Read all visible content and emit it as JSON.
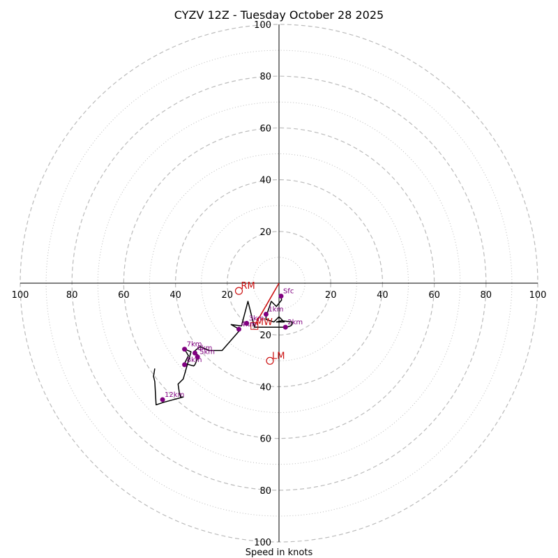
{
  "chart_data": {
    "type": "hodograph",
    "title": "CYZV 12Z - Tuesday October 28 2025",
    "xlabel": "Speed in knots",
    "range": [
      -100,
      100
    ],
    "dashed_rings": [
      20,
      40,
      60,
      80,
      100
    ],
    "dotted_rings": [
      10,
      30,
      50,
      70,
      90
    ],
    "tick_labels": {
      "left": [
        "100",
        "80",
        "60",
        "40",
        "20"
      ],
      "right": [
        "20",
        "40",
        "60",
        "80",
        "100"
      ],
      "top": [
        "20",
        "40",
        "60",
        "80",
        "100"
      ],
      "bottom": [
        "20",
        "40",
        "60",
        "80",
        "100"
      ]
    },
    "trace": [
      [
        0.8,
        -5
      ],
      [
        1,
        -6.5
      ],
      [
        -1,
        -9
      ],
      [
        -3,
        -7
      ],
      [
        -5,
        -13
      ],
      [
        -5,
        -14
      ],
      [
        -2,
        -15
      ],
      [
        0,
        -13
      ],
      [
        2,
        -15
      ],
      [
        -1,
        -15
      ],
      [
        1,
        -14.5
      ],
      [
        5,
        -15
      ],
      [
        5,
        -16
      ],
      [
        4.5,
        -16.5
      ],
      [
        3,
        -17
      ],
      [
        0,
        -17
      ],
      [
        -5,
        -17
      ],
      [
        -9.5,
        -17
      ],
      [
        -12,
        -7
      ],
      [
        -14.5,
        -16.5
      ],
      [
        -18.5,
        -16
      ],
      [
        -15,
        -18
      ],
      [
        -22,
        -26
      ],
      [
        -27,
        -26
      ],
      [
        -30.5,
        -24.5
      ],
      [
        -33,
        -26.5
      ],
      [
        -31,
        -28
      ],
      [
        -32.5,
        -31.5
      ],
      [
        -33,
        -32
      ],
      [
        -36.5,
        -31
      ],
      [
        -36,
        -30
      ],
      [
        -35,
        -28
      ],
      [
        -36.5,
        -25.5
      ],
      [
        -34,
        -26.5
      ],
      [
        -37,
        -37
      ],
      [
        -38,
        -38
      ],
      [
        -39,
        -39
      ],
      [
        -38.5,
        -42.5
      ],
      [
        -38,
        -44
      ],
      [
        -37,
        -44
      ],
      [
        -44.5,
        -46
      ],
      [
        -47.5,
        -47
      ],
      [
        -48,
        -38
      ],
      [
        -48.5,
        -36
      ],
      [
        -48,
        -33
      ]
    ],
    "height_markers": [
      {
        "label": "Sfc",
        "x": 0.8,
        "y": -5
      },
      {
        "label": "1km",
        "x": -5,
        "y": -12
      },
      {
        "label": "2km",
        "x": 2.5,
        "y": -17
      },
      {
        "label": "3km",
        "x": -12.5,
        "y": -15.5
      },
      {
        "label": "4km",
        "x": -15.5,
        "y": -17.8
      },
      {
        "label": "5km",
        "x": -31.5,
        "y": -28.5
      },
      {
        "label": "6km",
        "x": -32.5,
        "y": -27
      },
      {
        "label": "7km",
        "x": -36.5,
        "y": -25.5
      },
      {
        "label": "8km",
        "x": -36.5,
        "y": -31.5
      },
      {
        "label": "12km",
        "x": -45,
        "y": -45
      }
    ],
    "storm_motions": [
      {
        "label": "RM",
        "x": -15.5,
        "y": -3
      },
      {
        "label": "LM",
        "x": -3.5,
        "y": -30
      },
      {
        "label": "MW",
        "x": -9.5,
        "y": -16.5
      }
    ],
    "shear_vector": {
      "from": [
        0,
        0
      ],
      "to": [
        -9.5,
        -16.5
      ]
    },
    "colors": {
      "trace": "#000000",
      "markers": "#800080",
      "storm_motion": "#cc1111",
      "rings": "#bbbbbb"
    }
  }
}
